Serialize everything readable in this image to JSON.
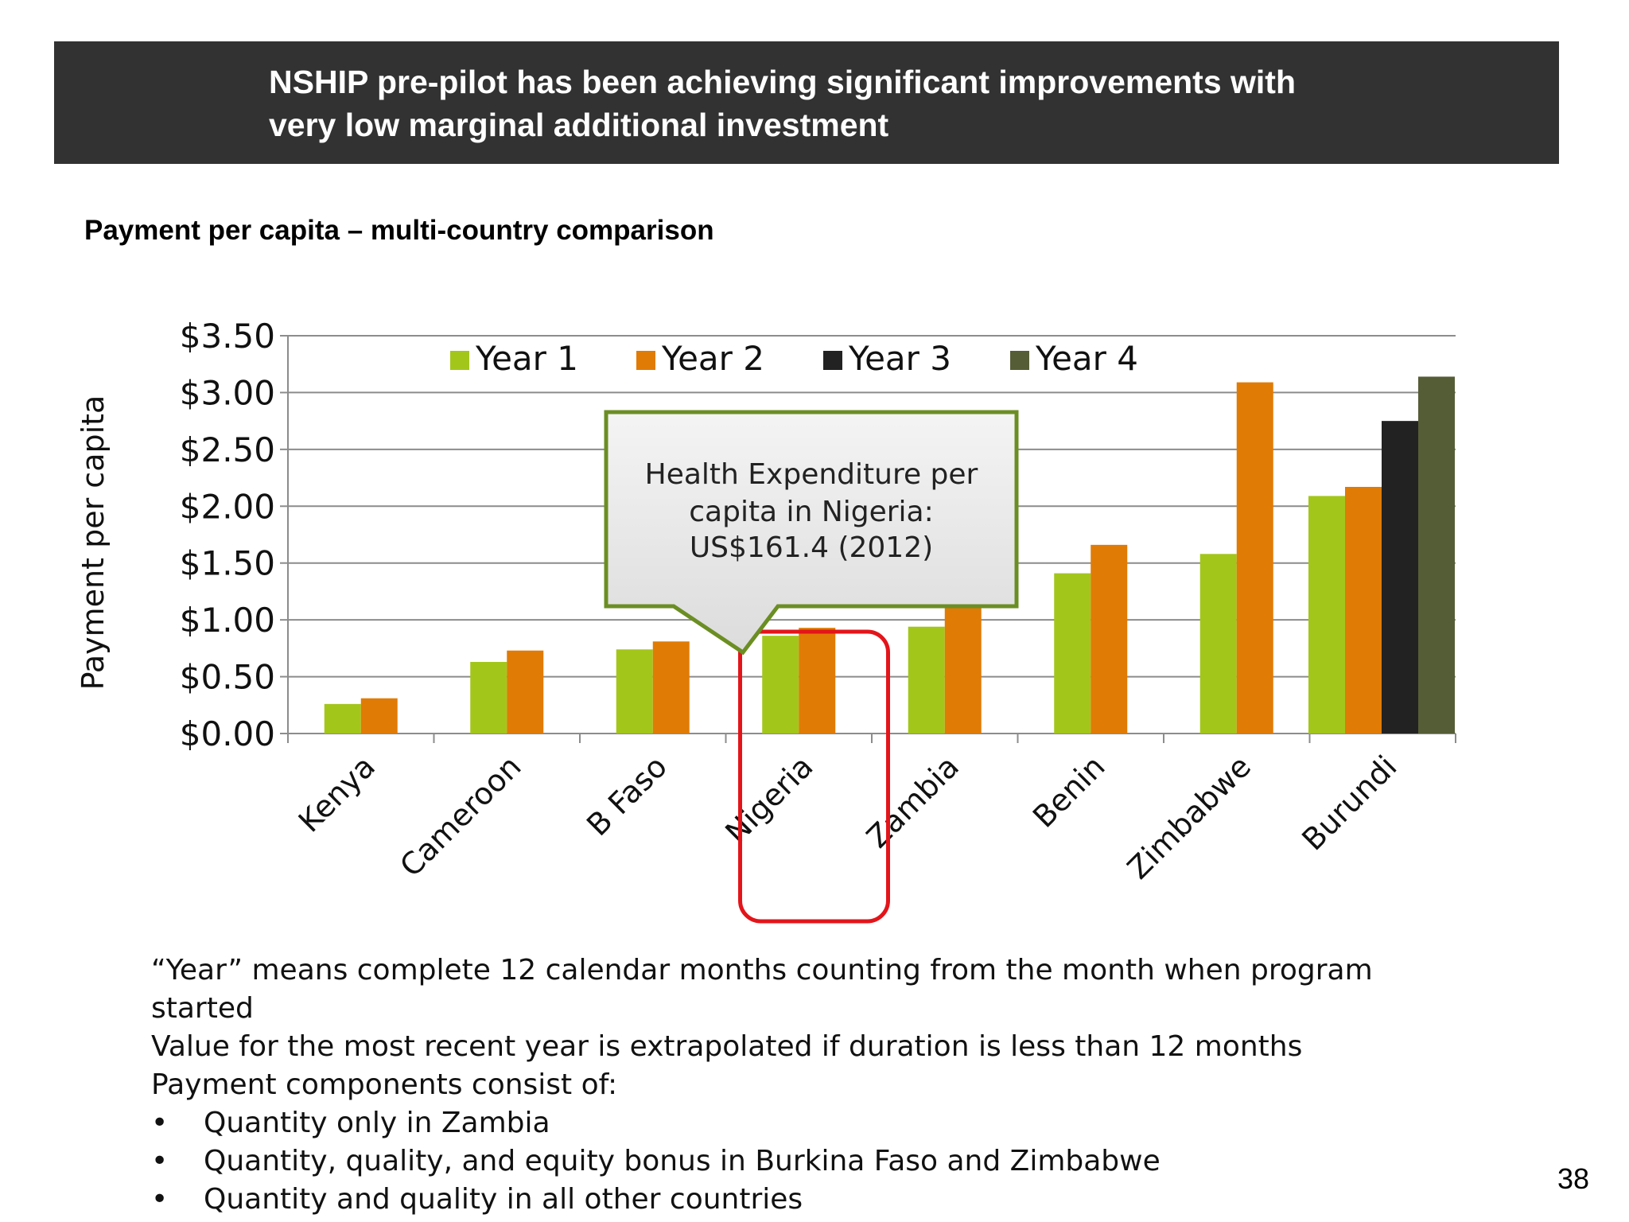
{
  "header": {
    "title_line1": "NSHIP pre-pilot has been achieving significant improvements with",
    "title_line2": "very low marginal additional investment",
    "background": "#323232"
  },
  "subtitle": "Payment per capita – multi-country comparison",
  "chart_data": {
    "type": "bar",
    "ylabel": "Payment per capita",
    "xlabel": "",
    "ylim": [
      0,
      3.5
    ],
    "yticks": [
      "$0.00",
      "$0.50",
      "$1.00",
      "$1.50",
      "$2.00",
      "$2.50",
      "$3.00",
      "$3.50"
    ],
    "categories": [
      "Kenya",
      "Cameroon",
      "B Faso",
      "Nigeria",
      "Zambia",
      "Benin",
      "Zimbabwe",
      "Burundi"
    ],
    "series": [
      {
        "name": "Year 1",
        "color": "#a3c61b",
        "values": [
          0.26,
          0.63,
          0.74,
          0.86,
          0.94,
          1.41,
          1.58,
          2.09
        ]
      },
      {
        "name": "Year 2",
        "color": "#e07b06",
        "values": [
          0.31,
          0.73,
          0.81,
          0.93,
          1.16,
          1.66,
          3.09,
          2.17
        ]
      },
      {
        "name": "Year 3",
        "color": "#222222",
        "values": [
          null,
          null,
          null,
          null,
          null,
          null,
          null,
          2.75
        ]
      },
      {
        "name": "Year 4",
        "color": "#555d36",
        "values": [
          null,
          null,
          null,
          null,
          null,
          null,
          null,
          3.14
        ]
      }
    ],
    "legend_position": "top-center",
    "grid": true,
    "callout": {
      "lines": [
        "Health Expenditure per",
        "capita in Nigeria:",
        "US$161.4 (2012)"
      ],
      "border_color": "#6b8e23"
    },
    "highlight": {
      "category": "Nigeria",
      "color": "#e3151a"
    }
  },
  "notes": {
    "line1": "“Year” means complete 12 calendar months counting from the month when program",
    "line2": "started",
    "line3": "Value for the most recent year is extrapolated if duration is less than 12 months",
    "line4": "Payment components consist of:",
    "bullet_char": "•",
    "bullets": [
      "Quantity only in Zambia",
      "Quantity, quality, and equity bonus in Burkina Faso and Zimbabwe",
      "Quantity and quality in all other countries"
    ]
  },
  "page_number": "38"
}
